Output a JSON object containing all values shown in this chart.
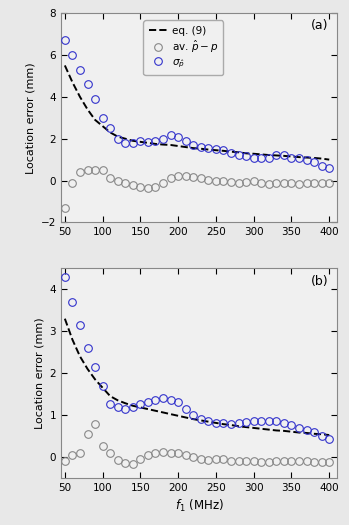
{
  "subplot_a": {
    "label": "(a)",
    "ylim": [
      -2,
      8
    ],
    "yticks": [
      -2,
      0,
      2,
      4,
      6,
      8
    ],
    "ylabel": "Location error (mm)",
    "f1_values": [
      50,
      60,
      70,
      80,
      90,
      100,
      110,
      120,
      130,
      140,
      150,
      160,
      170,
      180,
      190,
      200,
      210,
      220,
      230,
      240,
      250,
      260,
      270,
      280,
      290,
      300,
      310,
      320,
      330,
      340,
      350,
      360,
      370,
      380,
      390,
      400
    ],
    "sigma_p": [
      6.7,
      6.0,
      5.3,
      4.6,
      3.9,
      3.0,
      2.5,
      2.0,
      1.8,
      1.8,
      1.9,
      1.85,
      1.9,
      2.0,
      2.2,
      2.1,
      1.9,
      1.7,
      1.6,
      1.55,
      1.5,
      1.45,
      1.3,
      1.2,
      1.15,
      1.1,
      1.1,
      1.1,
      1.2,
      1.2,
      1.1,
      1.1,
      1.0,
      0.9,
      0.7,
      0.6
    ],
    "av_error": [
      -1.3,
      -0.1,
      0.4,
      0.5,
      0.5,
      0.5,
      0.1,
      0.0,
      -0.1,
      -0.2,
      -0.3,
      -0.35,
      -0.3,
      -0.1,
      0.1,
      0.2,
      0.2,
      0.15,
      0.1,
      0.05,
      0.0,
      0.0,
      -0.05,
      -0.1,
      -0.05,
      0.0,
      -0.1,
      -0.15,
      -0.1,
      -0.1,
      -0.1,
      -0.15,
      -0.1,
      -0.1,
      -0.1,
      -0.1
    ],
    "dashed_x": [
      50,
      60,
      70,
      80,
      90,
      100,
      110,
      120,
      130,
      140,
      150,
      160,
      170,
      180,
      190,
      200,
      210,
      220,
      230,
      240,
      250,
      260,
      270,
      280,
      290,
      300,
      310,
      320,
      330,
      340,
      350,
      360,
      370,
      380,
      390,
      400
    ],
    "dashed_y": [
      5.5,
      4.7,
      4.0,
      3.4,
      2.9,
      2.6,
      2.3,
      2.1,
      2.0,
      1.9,
      1.85,
      1.8,
      1.75,
      1.72,
      1.7,
      1.65,
      1.6,
      1.55,
      1.52,
      1.48,
      1.45,
      1.42,
      1.38,
      1.35,
      1.3,
      1.28,
      1.25,
      1.22,
      1.2,
      1.18,
      1.15,
      1.12,
      1.1,
      1.08,
      1.05,
      1.0
    ]
  },
  "subplot_b": {
    "label": "(b)",
    "ylim": [
      -0.5,
      4.5
    ],
    "yticks": [
      0,
      1,
      2,
      3,
      4
    ],
    "ylabel": "Location error (mm)",
    "f1_values": [
      50,
      60,
      70,
      80,
      90,
      100,
      110,
      120,
      130,
      140,
      150,
      160,
      170,
      180,
      190,
      200,
      210,
      220,
      230,
      240,
      250,
      260,
      270,
      280,
      290,
      300,
      310,
      320,
      330,
      340,
      350,
      360,
      370,
      380,
      390,
      400
    ],
    "sigma_p": [
      4.3,
      3.7,
      3.15,
      2.6,
      2.15,
      1.7,
      1.25,
      1.2,
      1.15,
      1.2,
      1.25,
      1.3,
      1.35,
      1.4,
      1.35,
      1.3,
      1.15,
      1.0,
      0.9,
      0.85,
      0.8,
      0.8,
      0.78,
      0.8,
      0.82,
      0.85,
      0.85,
      0.85,
      0.85,
      0.8,
      0.75,
      0.7,
      0.65,
      0.6,
      0.5,
      0.43
    ],
    "av_error": [
      -0.1,
      0.05,
      0.1,
      0.55,
      0.78,
      0.25,
      0.1,
      -0.08,
      -0.15,
      -0.18,
      -0.05,
      0.05,
      0.1,
      0.12,
      0.1,
      0.1,
      0.05,
      0.0,
      -0.05,
      -0.07,
      -0.05,
      -0.05,
      -0.1,
      -0.1,
      -0.1,
      -0.1,
      -0.12,
      -0.12,
      -0.1,
      -0.1,
      -0.1,
      -0.1,
      -0.1,
      -0.12,
      -0.12,
      -0.12
    ],
    "dashed_x": [
      50,
      60,
      70,
      80,
      90,
      100,
      110,
      120,
      130,
      140,
      150,
      160,
      170,
      180,
      190,
      200,
      210,
      220,
      230,
      240,
      250,
      260,
      270,
      280,
      290,
      300,
      310,
      320,
      330,
      340,
      350,
      360,
      370,
      380,
      390,
      400
    ],
    "dashed_y": [
      3.3,
      2.8,
      2.4,
      2.1,
      1.85,
      1.65,
      1.45,
      1.35,
      1.28,
      1.22,
      1.18,
      1.14,
      1.1,
      1.06,
      1.02,
      0.98,
      0.94,
      0.9,
      0.87,
      0.84,
      0.81,
      0.78,
      0.76,
      0.73,
      0.71,
      0.69,
      0.67,
      0.65,
      0.63,
      0.62,
      0.6,
      0.58,
      0.57,
      0.55,
      0.54,
      0.52
    ]
  },
  "xlabel": "$f_1$ (MHz)",
  "xlim": [
    45,
    410
  ],
  "xticks": [
    50,
    100,
    150,
    200,
    250,
    300,
    350,
    400
  ],
  "legend_items": [
    "eq. (9)",
    "av. $\\hat{p}-p$",
    "$\\sigma_{\\hat{p}}$"
  ],
  "circle_color_gray": "#888888",
  "circle_color_blue": "#3333cc",
  "dashed_color": "#222222",
  "axes_bg": "#f0f0f0",
  "fig_bg": "#e8e8e8"
}
